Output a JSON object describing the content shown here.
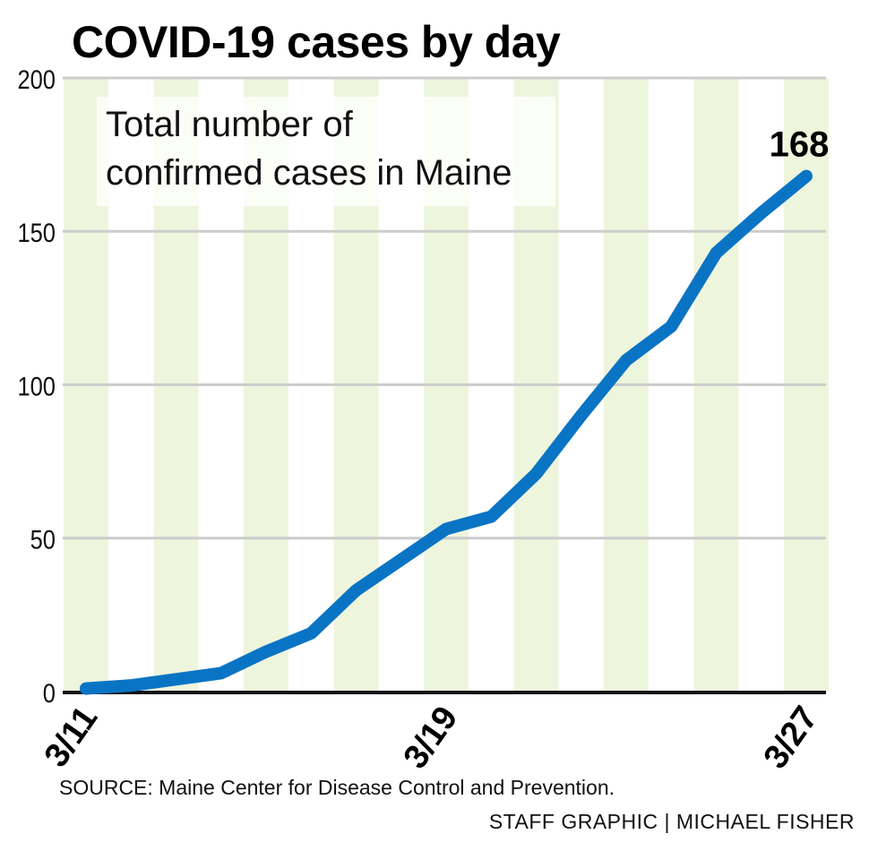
{
  "title": "COVID-19 cases by day",
  "subtitle_line1": "Total number of",
  "subtitle_line2": "confirmed cases in Maine",
  "source": "SOURCE: Maine Center for Disease Control and Prevention.",
  "credit": "STAFF GRAPHIC | MICHAEL FISHER",
  "colors": {
    "line": "#0a74c4",
    "band": "#eef5dd",
    "grid": "#cccccc"
  },
  "chart_data": {
    "type": "line",
    "title": "COVID-19 cases by day",
    "xlabel": "",
    "ylabel": "",
    "x": [
      "3/11",
      "3/12",
      "3/13",
      "3/14",
      "3/15",
      "3/16",
      "3/17",
      "3/18",
      "3/19",
      "3/20",
      "3/21",
      "3/22",
      "3/23",
      "3/24",
      "3/25",
      "3/26",
      "3/27"
    ],
    "values": [
      1,
      2,
      4,
      6,
      13,
      19,
      33,
      43,
      53,
      57,
      71,
      90,
      108,
      119,
      143,
      156,
      168
    ],
    "xticks": [
      "3/11",
      "3/19",
      "3/27"
    ],
    "yticks": [
      "0",
      "50",
      "100",
      "150",
      "200"
    ],
    "ylim": [
      0,
      200
    ],
    "annotation": "168",
    "grid": true
  }
}
